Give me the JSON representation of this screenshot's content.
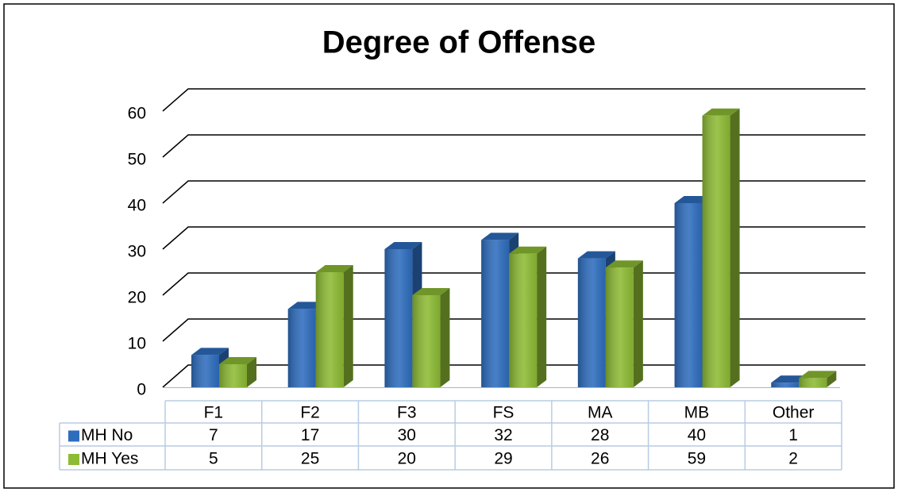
{
  "chart_data": {
    "type": "bar",
    "title": "Degree of Offense",
    "categories": [
      "F1",
      "F2",
      "F3",
      "FS",
      "MA",
      "MB",
      "Other"
    ],
    "series": [
      {
        "name": "MH No",
        "color": "#2e6dbe",
        "values": [
          7,
          17,
          30,
          32,
          28,
          40,
          1
        ]
      },
      {
        "name": "MH Yes",
        "color": "#8dbb34",
        "values": [
          5,
          25,
          20,
          29,
          26,
          59,
          2
        ]
      }
    ],
    "ylim": [
      0,
      60
    ],
    "yticks": [
      0,
      10,
      20,
      30,
      40,
      50,
      60
    ],
    "grid": true
  }
}
